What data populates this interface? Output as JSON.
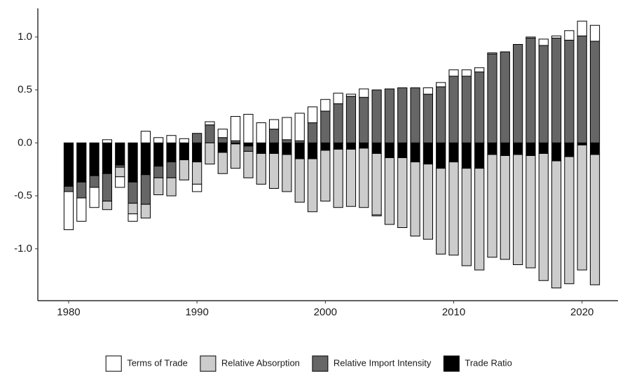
{
  "chart_data": {
    "type": "bar",
    "stacked": true,
    "x": [
      1980,
      1981,
      1982,
      1983,
      1984,
      1985,
      1986,
      1987,
      1988,
      1989,
      1990,
      1991,
      1992,
      1993,
      1994,
      1995,
      1996,
      1997,
      1998,
      1999,
      2000,
      2001,
      2002,
      2003,
      2004,
      2005,
      2006,
      2007,
      2008,
      2009,
      2010,
      2011,
      2012,
      2013,
      2014,
      2015,
      2016,
      2017,
      2018,
      2019,
      2020,
      2021
    ],
    "series": [
      {
        "name": "Terms of Trade",
        "color": "#ffffff",
        "values": [
          -0.36,
          -0.22,
          -0.19,
          0.03,
          -0.1,
          -0.07,
          0.11,
          0.05,
          0.07,
          0.04,
          -0.07,
          0.03,
          0.08,
          0.23,
          0.27,
          0.19,
          0.09,
          0.21,
          0.26,
          0.15,
          0.11,
          0.1,
          0.02,
          0.08,
          -0.01,
          0,
          0,
          0,
          0.06,
          0.04,
          0.06,
          0.06,
          0.04,
          0.01,
          0,
          0,
          0.01,
          0.06,
          0.02,
          0.09,
          0.14,
          0.15
        ]
      },
      {
        "name": "Relative Absorption",
        "color": "#cccccc",
        "values": [
          0,
          0,
          0,
          -0.08,
          -0.09,
          -0.1,
          -0.13,
          -0.16,
          -0.17,
          -0.19,
          -0.21,
          -0.2,
          -0.2,
          -0.23,
          -0.25,
          -0.29,
          -0.33,
          -0.35,
          -0.41,
          -0.5,
          -0.48,
          -0.55,
          -0.54,
          -0.56,
          -0.58,
          -0.63,
          -0.66,
          -0.7,
          -0.71,
          -0.81,
          -0.88,
          -0.92,
          -0.96,
          -0.97,
          -0.98,
          -1.04,
          -1.06,
          -1.2,
          -1.2,
          -1.2,
          -1.18,
          -1.23
        ]
      },
      {
        "name": "Relative Import Intensity",
        "color": "#666666",
        "values": [
          -0.05,
          -0.15,
          -0.11,
          -0.26,
          -0.02,
          -0.2,
          -0.28,
          -0.11,
          -0.15,
          0,
          0.09,
          0.17,
          0.05,
          0.02,
          -0.05,
          0,
          0.13,
          0.03,
          0.02,
          0.19,
          0.3,
          0.37,
          0.44,
          0.43,
          0.5,
          0.51,
          0.52,
          0.52,
          0.46,
          0.53,
          0.63,
          0.63,
          0.67,
          0.84,
          0.86,
          0.93,
          0.99,
          0.92,
          0.99,
          0.97,
          1.01,
          0.96
        ]
      },
      {
        "name": "Trade Ratio",
        "color": "#000000",
        "values": [
          -0.41,
          -0.37,
          -0.31,
          -0.29,
          -0.21,
          -0.37,
          -0.3,
          -0.22,
          -0.18,
          -0.16,
          -0.18,
          0,
          -0.09,
          -0.01,
          -0.03,
          -0.1,
          -0.1,
          -0.11,
          -0.15,
          -0.15,
          -0.07,
          -0.06,
          -0.06,
          -0.05,
          -0.1,
          -0.14,
          -0.14,
          -0.18,
          -0.2,
          -0.24,
          -0.18,
          -0.24,
          -0.24,
          -0.11,
          -0.12,
          -0.11,
          -0.12,
          -0.1,
          -0.17,
          -0.13,
          -0.02,
          -0.11
        ]
      }
    ],
    "xlim": [
      1977.6,
      2022.8
    ],
    "xticks": [
      1980,
      1990,
      2000,
      2010,
      2020
    ],
    "ylim": [
      -1.49,
      1.27
    ],
    "yticks": [
      {
        "value": -1,
        "label": "-1.0"
      },
      {
        "value": -0.5,
        "label": "-0.5"
      },
      {
        "value": 0,
        "label": "0.0"
      },
      {
        "value": 0.5,
        "label": "0.5"
      },
      {
        "value": 1,
        "label": "1.0"
      }
    ],
    "grid": false,
    "legend": "bottom"
  }
}
